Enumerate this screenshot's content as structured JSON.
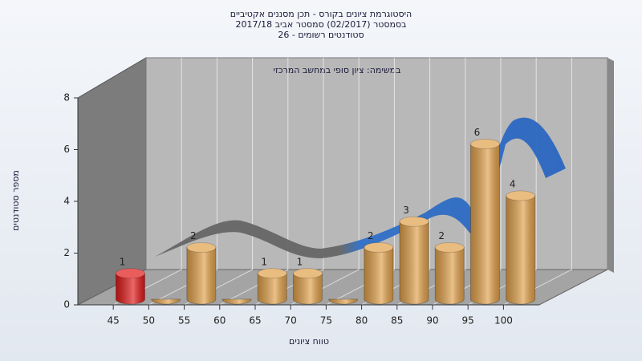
{
  "chart_data": {
    "type": "bar3d",
    "title": [
      "היסטוגרמת ציונים בקורס - תכן מסננים אקטיביים",
      "בסמסטר (02/2017) סמסטר אביב 2017/18",
      "סטודנטים רשומים - 26"
    ],
    "annotation": "במשימה: ציון סופי במחשב המרכזי",
    "x_label": "טווח ציונים",
    "y_label": "מספר סטודנטים",
    "categories": [
      "45",
      "50",
      "55",
      "60",
      "65",
      "70",
      "75",
      "80",
      "85",
      "90",
      "95",
      "100"
    ],
    "values": [
      1,
      0,
      2,
      0,
      1,
      1,
      0,
      2,
      3,
      2,
      6,
      4
    ],
    "colors": [
      "#e01818",
      "#e0a04a",
      "#e0a04a",
      "#e0a04a",
      "#e0a04a",
      "#e0a04a",
      "#e0a04a",
      "#e0a04a",
      "#e0a04a",
      "#e0a04a",
      "#e0a04a",
      "#e0a04a"
    ],
    "ylim": [
      0,
      8
    ],
    "yticks": [
      0,
      2,
      4,
      6,
      8
    ]
  }
}
